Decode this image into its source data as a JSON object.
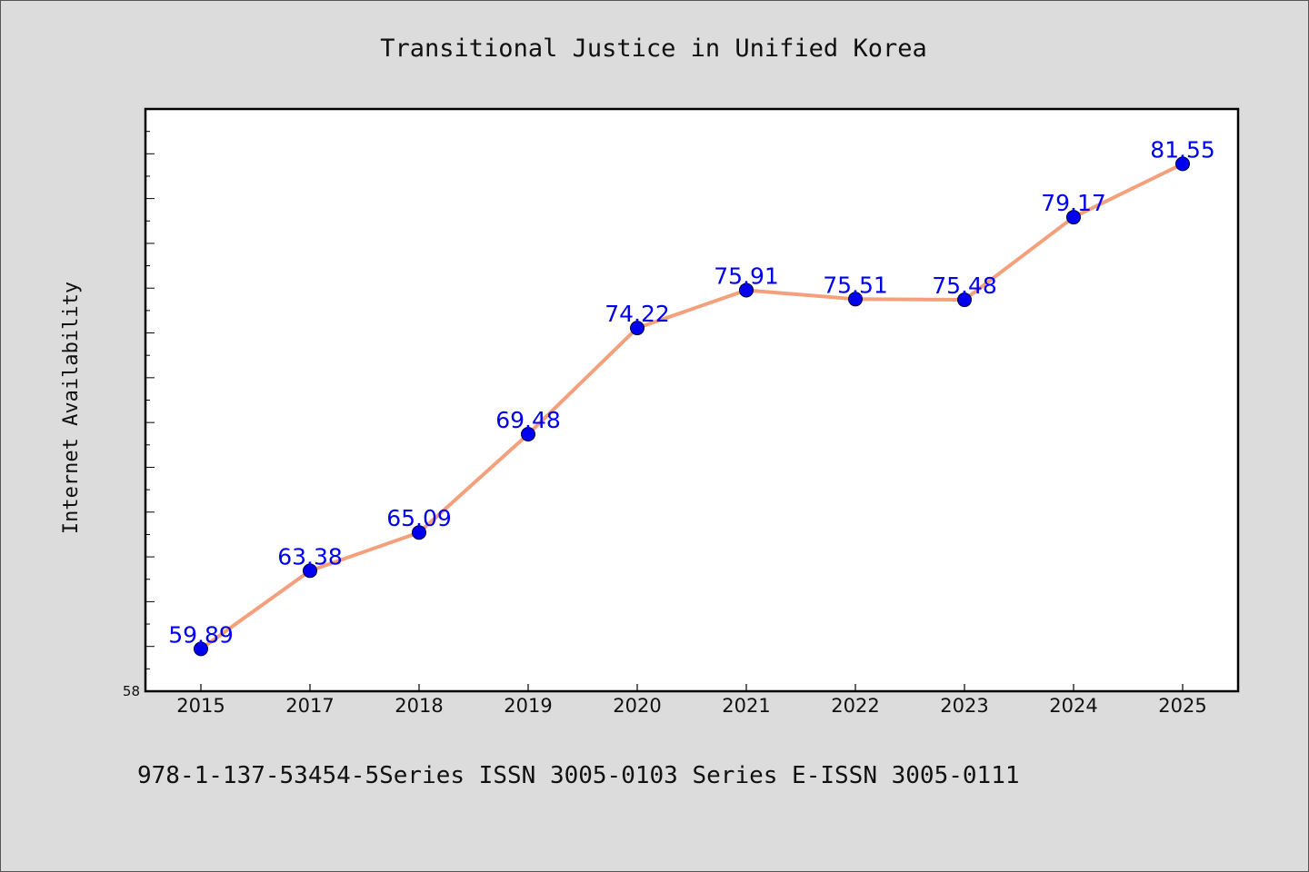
{
  "chart_data": {
    "type": "line",
    "title": "Transitional Justice in Unified Korea",
    "xlabel": "",
    "ylabel": "Internet Availability",
    "categories": [
      "2015",
      "2017",
      "2018",
      "2019",
      "2020",
      "2021",
      "2022",
      "2023",
      "2024",
      "2025"
    ],
    "series": [
      {
        "values": [
          59.89,
          63.38,
          65.09,
          69.48,
          74.22,
          75.91,
          75.51,
          75.48,
          79.17,
          81.55
        ],
        "data_labels": [
          "59.89",
          "63.38",
          "65.09",
          "69.48",
          "74.22",
          "75.91",
          "75.51",
          "75.48",
          "79.17",
          "81.55"
        ],
        "line_color": "#f4a07c",
        "marker_color": "#0000ee",
        "label_color": "#0000ee"
      }
    ],
    "ylim": [
      58,
      84
    ],
    "ytick_labels": [
      "58"
    ],
    "grid": false,
    "legend": "none"
  },
  "footer": {
    "text": "978-1-137-53454-5Series ISSN 3005-0103 Series E-ISSN 3005-0111"
  },
  "colors": {
    "background": "#dcdcdc",
    "plot_background": "#ffffff",
    "axis": "#000000"
  }
}
